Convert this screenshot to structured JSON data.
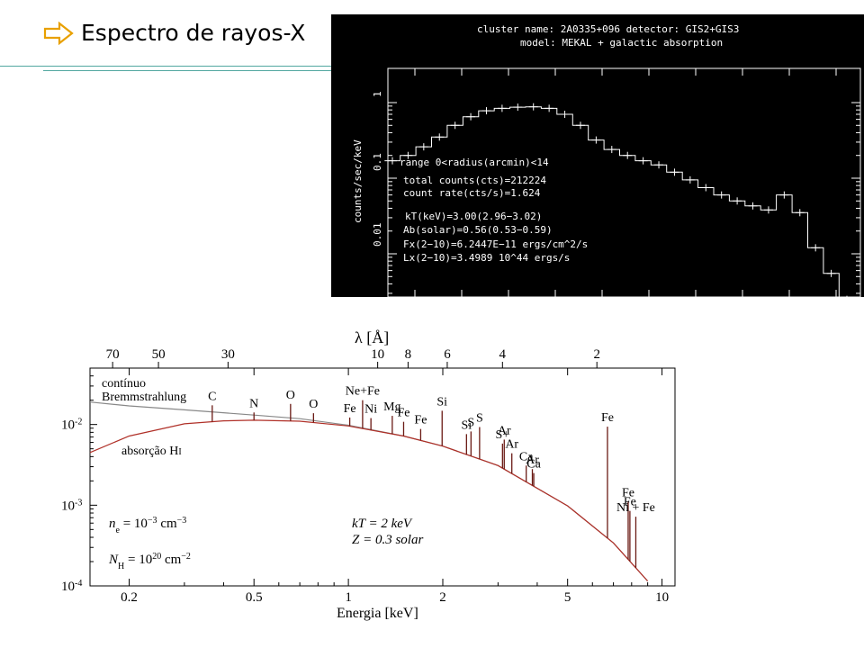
{
  "slide": {
    "title": "Espectro de rayos-X",
    "bullet_icon": "hollow-right-arrow-icon",
    "accent_color": "#52a7a0"
  },
  "chart_data": [
    {
      "type": "line",
      "header": [
        "cluster name: 2A0335+096     detector: GIS2+GIS3",
        "model: MEKAL + galactic absorption"
      ],
      "ylabel": "counts/sec/keV",
      "y_scale": "log",
      "y_ticks": [
        "1",
        "0.1",
        "0.01"
      ],
      "background": "#000000",
      "annotations": [
        "range 0<radius(arcmin)<14",
        "total counts(cts)=212224",
        " count rate(cts/s)=1.624",
        "kT(keV)=3.00(2.96−3.02)",
        "Ab(solar)=0.56(0.53−0.59)",
        "  Fx(2−10)=6.2447E−11 ergs/cm^2/s",
        "  Lx(2−10)=3.4989 10^44 ergs/s"
      ],
      "series": [
        {
          "values": [
            0.17,
            0.2,
            0.26,
            0.35,
            0.5,
            0.65,
            0.78,
            0.84,
            0.87,
            0.88,
            0.84,
            0.7,
            0.5,
            0.32,
            0.24,
            0.2,
            0.17,
            0.15,
            0.12,
            0.095,
            0.075,
            0.06,
            0.05,
            0.043,
            0.038,
            0.06,
            0.035,
            0.012,
            0.0055,
            0.0025
          ]
        }
      ]
    },
    {
      "type": "line",
      "xlabel": "Energia [keV]",
      "x_scale": "log",
      "xlim": [
        0.15,
        11
      ],
      "x_ticks": [
        "0.2",
        "0.5",
        "1",
        "2",
        "5",
        "10"
      ],
      "top_axis_label": "λ [Å]",
      "top_ticks": [
        "70",
        "50",
        "30",
        "10",
        "8",
        "6",
        "4",
        "2"
      ],
      "y_scale": "log",
      "y_ticks": [
        "10-2",
        "10-3",
        "10-4"
      ],
      "ylim": [
        0.0001,
        0.05
      ],
      "series": [
        {
          "name": "contínuo Bremmstrahlung",
          "color": "#888888",
          "x": [
            0.15,
            0.2,
            0.3,
            0.5,
            0.7,
            1,
            1.5,
            2,
            3,
            5,
            7,
            9
          ],
          "y": [
            0.019,
            0.017,
            0.0152,
            0.0131,
            0.0118,
            0.0098,
            0.0072,
            0.0054,
            0.0031,
            0.00098,
            0.00034,
            0.000115
          ]
        },
        {
          "name": "absorção HI",
          "color": "#b03028",
          "x": [
            0.15,
            0.2,
            0.3,
            0.4,
            0.5,
            0.7,
            1,
            1.5,
            2,
            3,
            5,
            7,
            9
          ],
          "y": [
            0.0045,
            0.0072,
            0.0102,
            0.0111,
            0.0113,
            0.011,
            0.0096,
            0.0072,
            0.0054,
            0.0031,
            0.00098,
            0.00034,
            0.000115
          ]
        }
      ],
      "lines": [
        {
          "label": "C",
          "x": 0.368,
          "peak": 0.0173
        },
        {
          "label": "N",
          "x": 0.5,
          "peak": 0.0141
        },
        {
          "label": "O",
          "x": 0.654,
          "peak": 0.018
        },
        {
          "label": "O",
          "x": 0.774,
          "peak": 0.0138
        },
        {
          "label": "Fe",
          "x": 1.01,
          "peak": 0.0122
        },
        {
          "label": "Ne+Fe",
          "x": 1.11,
          "peak": 0.02
        },
        {
          "label": "Ni",
          "x": 1.18,
          "peak": 0.012
        },
        {
          "label": "Mg",
          "x": 1.38,
          "peak": 0.0128
        },
        {
          "label": "Fe",
          "x": 1.5,
          "peak": 0.0108
        },
        {
          "label": "Fe",
          "x": 1.7,
          "peak": 0.0088
        },
        {
          "label": "Si",
          "x": 1.99,
          "peak": 0.0148
        },
        {
          "label": "Si",
          "x": 2.38,
          "peak": 0.0076
        },
        {
          "label": "S",
          "x": 2.46,
          "peak": 0.0082
        },
        {
          "label": "S",
          "x": 2.62,
          "peak": 0.0093
        },
        {
          "label": "S+",
          "x": 3.1,
          "peak": 0.0058
        },
        {
          "label": "Ar",
          "x": 3.14,
          "peak": 0.0065
        },
        {
          "label": "Ar",
          "x": 3.32,
          "peak": 0.0044
        },
        {
          "label": "Ca",
          "x": 3.69,
          "peak": 0.0031
        },
        {
          "label": "Ar",
          "x": 3.86,
          "peak": 0.0028
        },
        {
          "label": "Ca",
          "x": 3.9,
          "peak": 0.0025
        },
        {
          "label": "Fe",
          "x": 6.7,
          "peak": 0.0094
        },
        {
          "label": "Fe",
          "x": 7.8,
          "peak": 0.0011
        },
        {
          "label": "Fe",
          "x": 7.9,
          "peak": 0.00085
        },
        {
          "label": "Ni + Fe",
          "x": 8.25,
          "peak": 0.00072
        }
      ],
      "annotations": {
        "ne": "n_e = 10^-3 cm^-3",
        "nh": "N_H = 10^20 cm^-2",
        "kt": "kT = 2 keV",
        "z": "Z = 0.3 solar"
      }
    }
  ]
}
